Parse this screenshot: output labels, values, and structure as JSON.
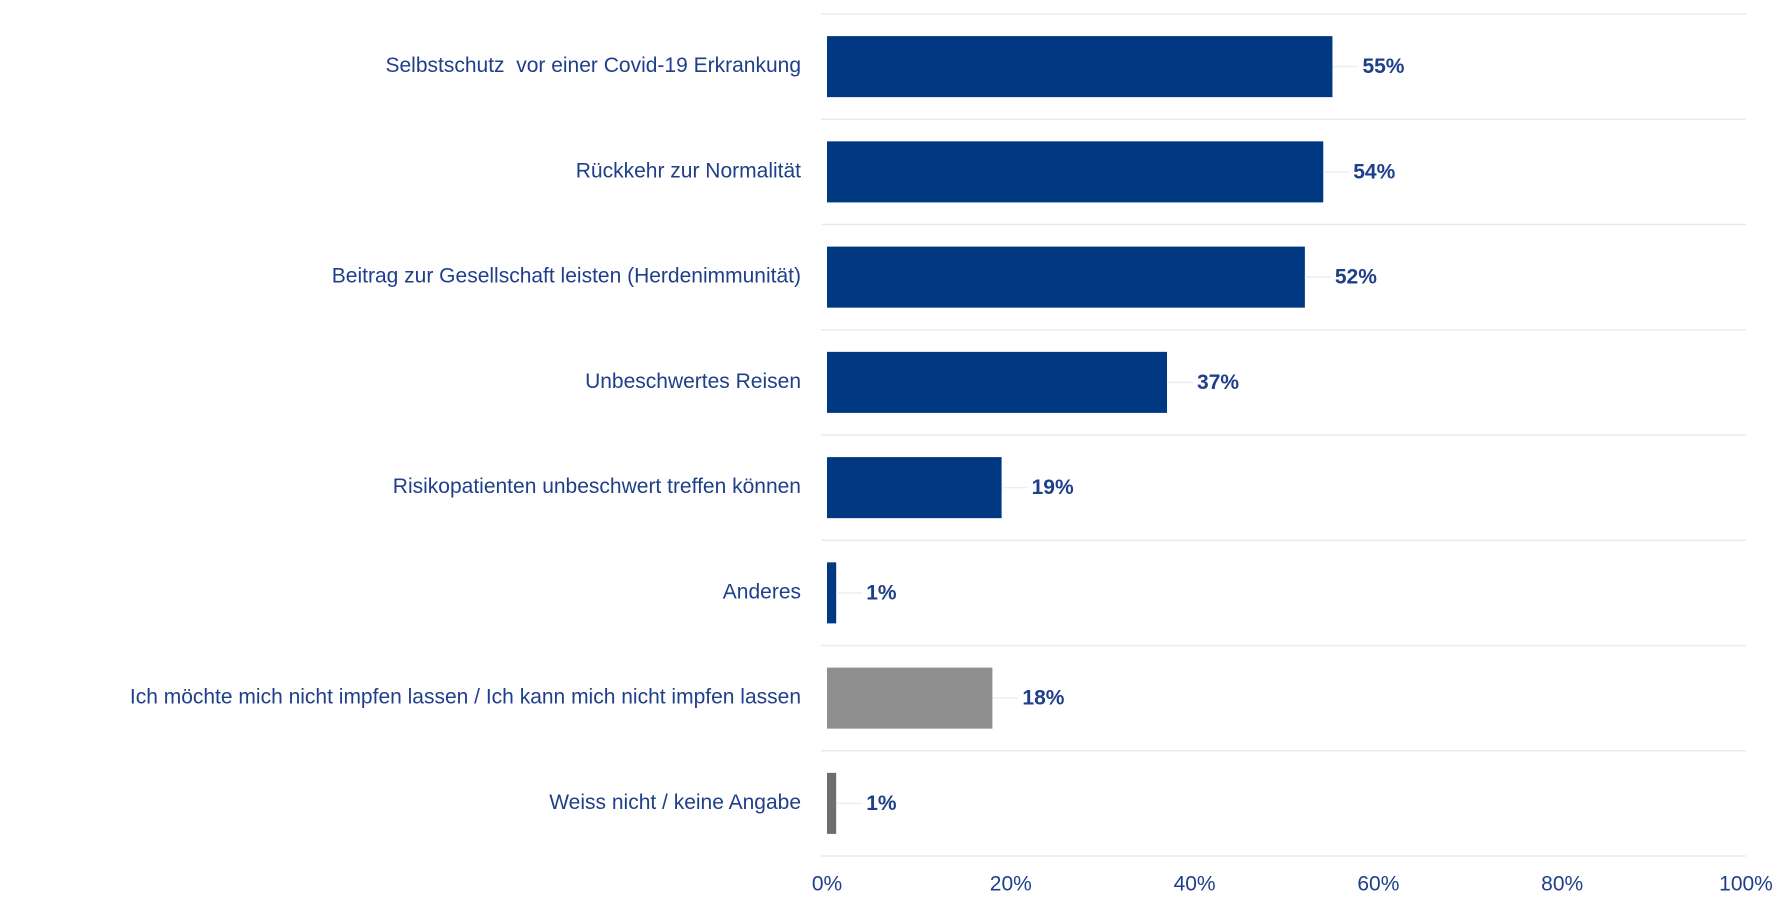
{
  "chart_data": {
    "type": "bar",
    "orientation": "horizontal",
    "categories": [
      "Selbstschutz  vor einer Covid-19 Erkrankung",
      "Rückkehr zur Normalität",
      "Beitrag zur Gesellschaft leisten (Herdenimmunität)",
      "Unbeschwertes Reisen",
      "Risikopatienten unbeschwert treffen können",
      "Anderes",
      "Ich möchte mich nicht impfen lassen / Ich kann mich nicht impfen lassen",
      "Weiss nicht / keine Angabe"
    ],
    "values": [
      55,
      54,
      52,
      37,
      19,
      1,
      18,
      1
    ],
    "value_labels": [
      "55%",
      "54%",
      "52%",
      "37%",
      "19%",
      "1%",
      "18%",
      "1%"
    ],
    "colors": [
      "#003882",
      "#003882",
      "#003882",
      "#003882",
      "#003882",
      "#003882",
      "#8f8f8f",
      "#6e6e6e"
    ],
    "xlim": [
      0,
      100
    ],
    "xticks": [
      {
        "value": 0,
        "label": "0%"
      },
      {
        "value": 20,
        "label": "20%"
      },
      {
        "value": 40,
        "label": "40%"
      },
      {
        "value": 60,
        "label": "60%"
      },
      {
        "value": 80,
        "label": "80%"
      },
      {
        "value": 100,
        "label": "100%"
      }
    ],
    "grid": false
  }
}
